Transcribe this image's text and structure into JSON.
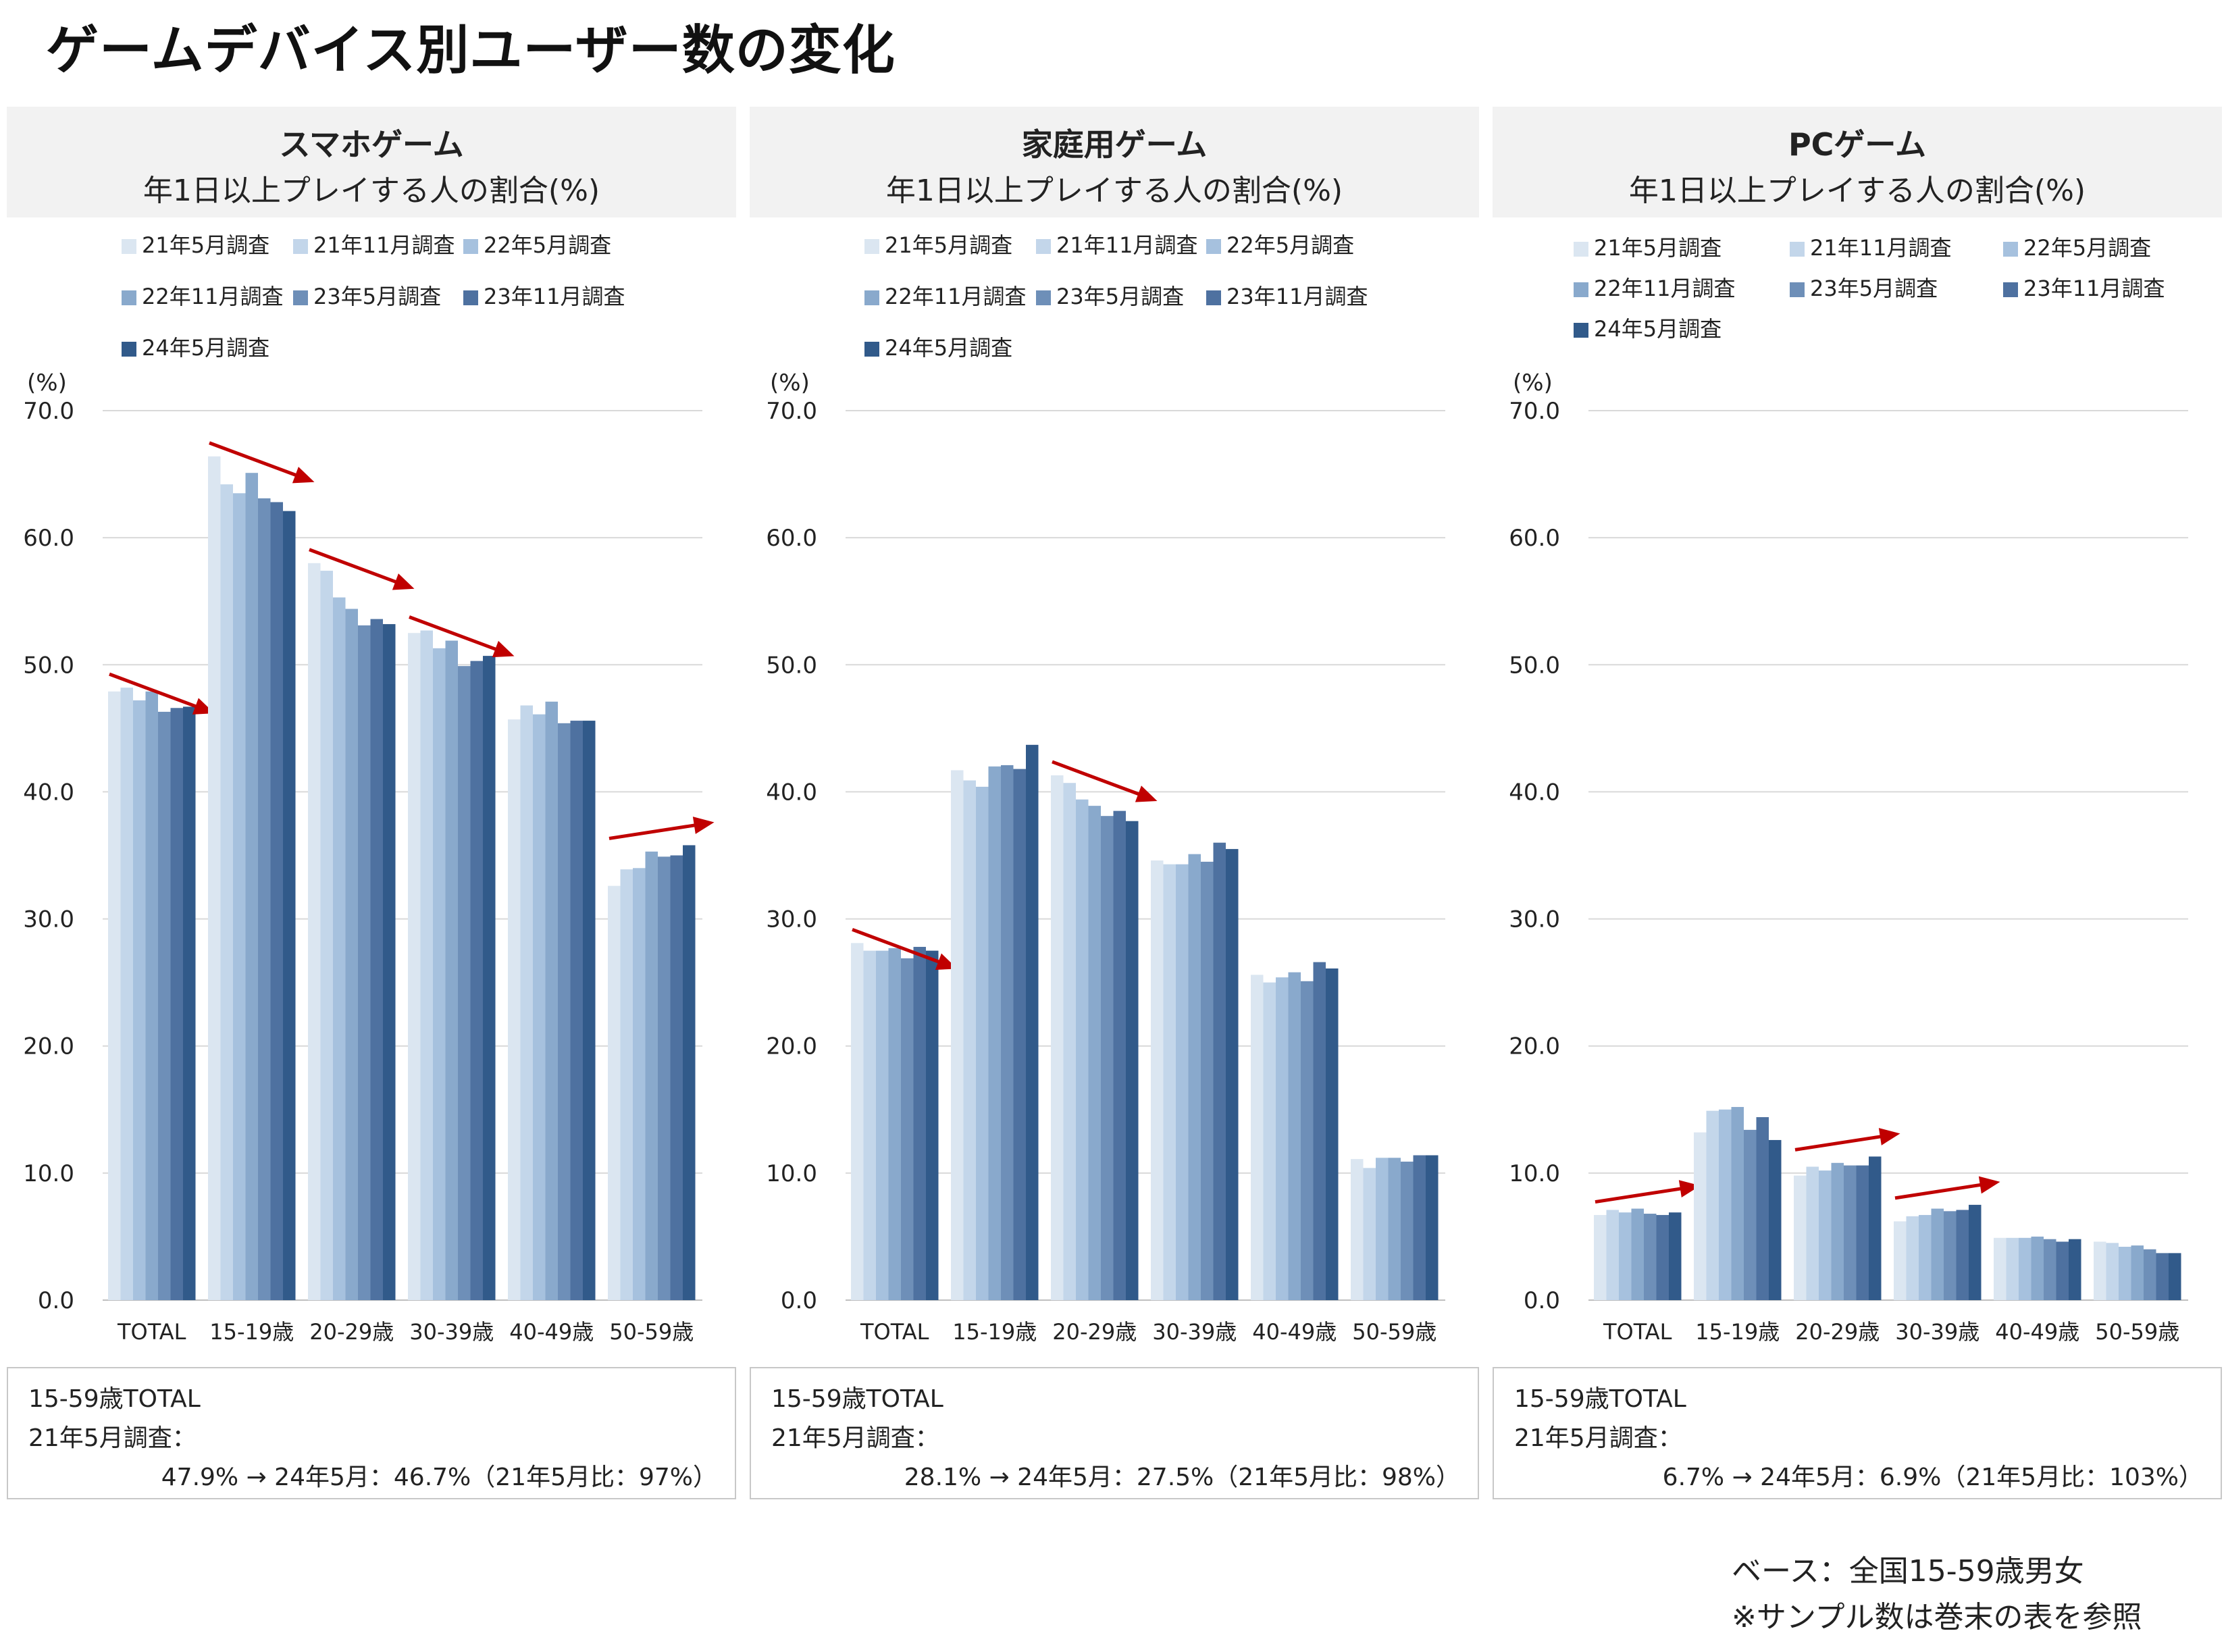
{
  "main_title": "ゲームデバイス別ユーザー数の変化",
  "footnotes": [
    "ベース：全国15-59歳男女",
    "※サンプル数は巻末の表を参照"
  ],
  "chart_data": [
    {
      "type": "bar",
      "title": "スマホゲーム",
      "subtitle": "年1日以上プレイする人の割合(%)",
      "ylabel": "(%)",
      "ylim": [
        0,
        70
      ],
      "yticks": [
        "70.0",
        "60.0",
        "50.0",
        "40.0",
        "30.0",
        "20.0",
        "10.0",
        "0.0"
      ],
      "grid": true,
      "legend_position": "top",
      "categories": [
        "TOTAL",
        "15-19歳",
        "20-29歳",
        "30-39歳",
        "40-49歳",
        "50-59歳"
      ],
      "series": [
        {
          "name": "21年5月調査",
          "color": "#dbe6f1",
          "values": [
            47.9,
            66.4,
            58.0,
            52.5,
            45.7,
            32.6
          ]
        },
        {
          "name": "21年11月調査",
          "color": "#c3d6ea",
          "values": [
            48.2,
            64.2,
            57.4,
            52.7,
            46.8,
            33.9
          ]
        },
        {
          "name": "22年5月調査",
          "color": "#a6c1de",
          "values": [
            47.2,
            63.5,
            55.3,
            51.3,
            46.1,
            34.0
          ]
        },
        {
          "name": "22年11月調査",
          "color": "#89a9cc",
          "values": [
            47.9,
            65.1,
            54.4,
            51.9,
            47.1,
            35.3
          ]
        },
        {
          "name": "23年5月調査",
          "color": "#6e8fb8",
          "values": [
            46.3,
            63.1,
            53.1,
            49.9,
            45.4,
            34.9
          ]
        },
        {
          "name": "23年11月調査",
          "color": "#4e71a0",
          "values": [
            46.6,
            62.8,
            53.6,
            50.3,
            45.6,
            35.0
          ]
        },
        {
          "name": "24年5月調査",
          "color": "#315a8a",
          "values": [
            46.7,
            62.1,
            53.2,
            50.7,
            45.6,
            35.8
          ]
        }
      ],
      "trend_arrow_groups": [
        "TOTAL",
        "15-19歳",
        "20-29歳",
        "30-39歳",
        "50-59歳"
      ],
      "summary": {
        "line1": "15-59歳TOTAL",
        "line2": "21年5月調査：",
        "line3": "47.9% → 24年5月：46.7%（21年5月比：97%）"
      }
    },
    {
      "type": "bar",
      "title": "家庭用ゲーム",
      "subtitle": "年1日以上プレイする人の割合(%)",
      "ylabel": "(%)",
      "ylim": [
        0,
        70
      ],
      "yticks": [
        "70.0",
        "60.0",
        "50.0",
        "40.0",
        "30.0",
        "20.0",
        "10.0",
        "0.0"
      ],
      "grid": true,
      "legend_position": "top",
      "categories": [
        "TOTAL",
        "15-19歳",
        "20-29歳",
        "30-39歳",
        "40-49歳",
        "50-59歳"
      ],
      "series": [
        {
          "name": "21年5月調査",
          "color": "#dbe6f1",
          "values": [
            28.1,
            41.7,
            41.3,
            34.6,
            25.6,
            11.1
          ]
        },
        {
          "name": "21年11月調査",
          "color": "#c3d6ea",
          "values": [
            27.5,
            40.9,
            40.7,
            34.3,
            25.0,
            10.4
          ]
        },
        {
          "name": "22年5月調査",
          "color": "#a6c1de",
          "values": [
            27.5,
            40.4,
            39.4,
            34.3,
            25.4,
            11.2
          ]
        },
        {
          "name": "22年11月調査",
          "color": "#89a9cc",
          "values": [
            27.7,
            42.0,
            38.9,
            35.1,
            25.8,
            11.2
          ]
        },
        {
          "name": "23年5月調査",
          "color": "#6e8fb8",
          "values": [
            26.9,
            42.1,
            38.1,
            34.5,
            25.1,
            10.9
          ]
        },
        {
          "name": "23年11月調査",
          "color": "#4e71a0",
          "values": [
            27.8,
            41.8,
            38.5,
            36.0,
            26.6,
            11.4
          ]
        },
        {
          "name": "24年5月調査",
          "color": "#315a8a",
          "values": [
            27.5,
            43.7,
            37.7,
            35.5,
            26.1,
            11.4
          ]
        }
      ],
      "trend_arrow_groups": [
        "TOTAL",
        "20-29歳"
      ],
      "summary": {
        "line1": "15-59歳TOTAL",
        "line2": "21年5月調査：",
        "line3": "28.1% → 24年5月：27.5%（21年5月比：98%）"
      }
    },
    {
      "type": "bar",
      "title": "PCゲーム",
      "subtitle": "年1日以上プレイする人の割合(%)",
      "ylabel": "(%)",
      "ylim": [
        0,
        70
      ],
      "yticks": [
        "70.0",
        "60.0",
        "50.0",
        "40.0",
        "30.0",
        "20.0",
        "10.0",
        "0.0"
      ],
      "grid": true,
      "legend_position": "top",
      "categories": [
        "TOTAL",
        "15-19歳",
        "20-29歳",
        "30-39歳",
        "40-49歳",
        "50-59歳"
      ],
      "series": [
        {
          "name": "21年5月調査",
          "color": "#dbe6f1",
          "values": [
            6.7,
            13.2,
            9.8,
            6.2,
            4.9,
            4.6
          ]
        },
        {
          "name": "21年11月調査",
          "color": "#c3d6ea",
          "values": [
            7.1,
            14.9,
            10.5,
            6.6,
            4.9,
            4.5
          ]
        },
        {
          "name": "22年5月調査",
          "color": "#a6c1de",
          "values": [
            6.9,
            15.0,
            10.2,
            6.7,
            4.9,
            4.2
          ]
        },
        {
          "name": "22年11月調査",
          "color": "#89a9cc",
          "values": [
            7.2,
            15.2,
            10.8,
            7.2,
            5.0,
            4.3
          ]
        },
        {
          "name": "23年5月調査",
          "color": "#6e8fb8",
          "values": [
            6.8,
            13.4,
            10.6,
            7.0,
            4.8,
            4.0
          ]
        },
        {
          "name": "23年11月調査",
          "color": "#4e71a0",
          "values": [
            6.7,
            14.4,
            10.6,
            7.1,
            4.6,
            3.7
          ]
        },
        {
          "name": "24年5月調査",
          "color": "#315a8a",
          "values": [
            6.9,
            12.6,
            11.3,
            7.5,
            4.8,
            3.7
          ]
        }
      ],
      "trend_arrow_groups": [
        "TOTAL",
        "20-29歳",
        "30-39歳"
      ],
      "summary": {
        "line1": "15-59歳TOTAL",
        "line2": "21年5月調査：",
        "line3": "6.7% → 24年5月：6.9%（21年5月比：103%）"
      }
    }
  ]
}
